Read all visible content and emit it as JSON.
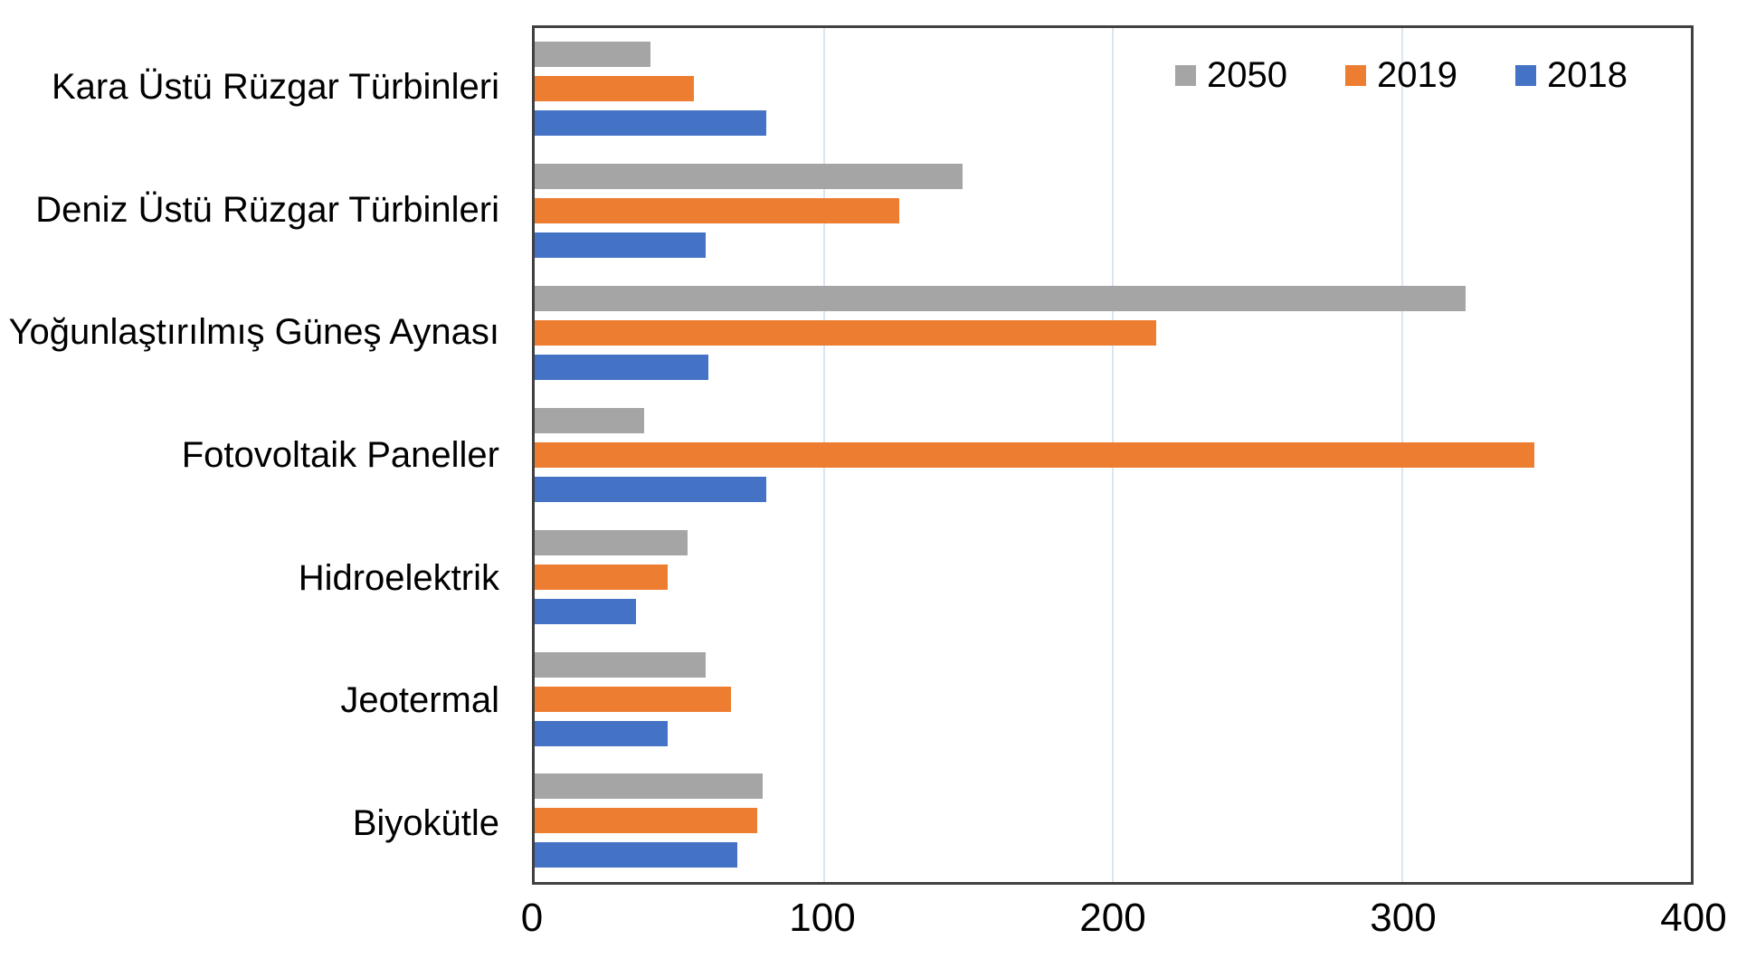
{
  "chart_data": {
    "type": "bar",
    "orientation": "horizontal",
    "title": "",
    "categories": [
      "Kara Üstü Rüzgar Türbinleri",
      "Deniz Üstü Rüzgar Türbinleri",
      "Yoğunlaştırılmış Güneş Aynası",
      "Fotovoltaik Paneller",
      "Hidroelektrik",
      "Jeotermal",
      "Biyokütle"
    ],
    "series": [
      {
        "name": "2050",
        "color": "#a5a5a5",
        "values": [
          40,
          148,
          322,
          38,
          53,
          59,
          79
        ]
      },
      {
        "name": "2019",
        "color": "#ed7d31",
        "values": [
          55,
          126,
          215,
          346,
          46,
          68,
          77
        ]
      },
      {
        "name": "2018",
        "color": "#4472c4",
        "values": [
          80,
          59,
          60,
          80,
          35,
          46,
          70
        ]
      }
    ],
    "x_axis": {
      "min": 0,
      "max": 400,
      "ticks": [
        0,
        100,
        200,
        300,
        400
      ]
    },
    "grid": "vertical-lines-at-100-200-300",
    "legend": {
      "position": "top-right-inside-plot",
      "entries": [
        "2050",
        "2019",
        "2018"
      ]
    },
    "colors": {
      "plot_border": "#404040",
      "gridline": "#dbe5f1",
      "text": "#000000",
      "background": "#ffffff"
    }
  }
}
